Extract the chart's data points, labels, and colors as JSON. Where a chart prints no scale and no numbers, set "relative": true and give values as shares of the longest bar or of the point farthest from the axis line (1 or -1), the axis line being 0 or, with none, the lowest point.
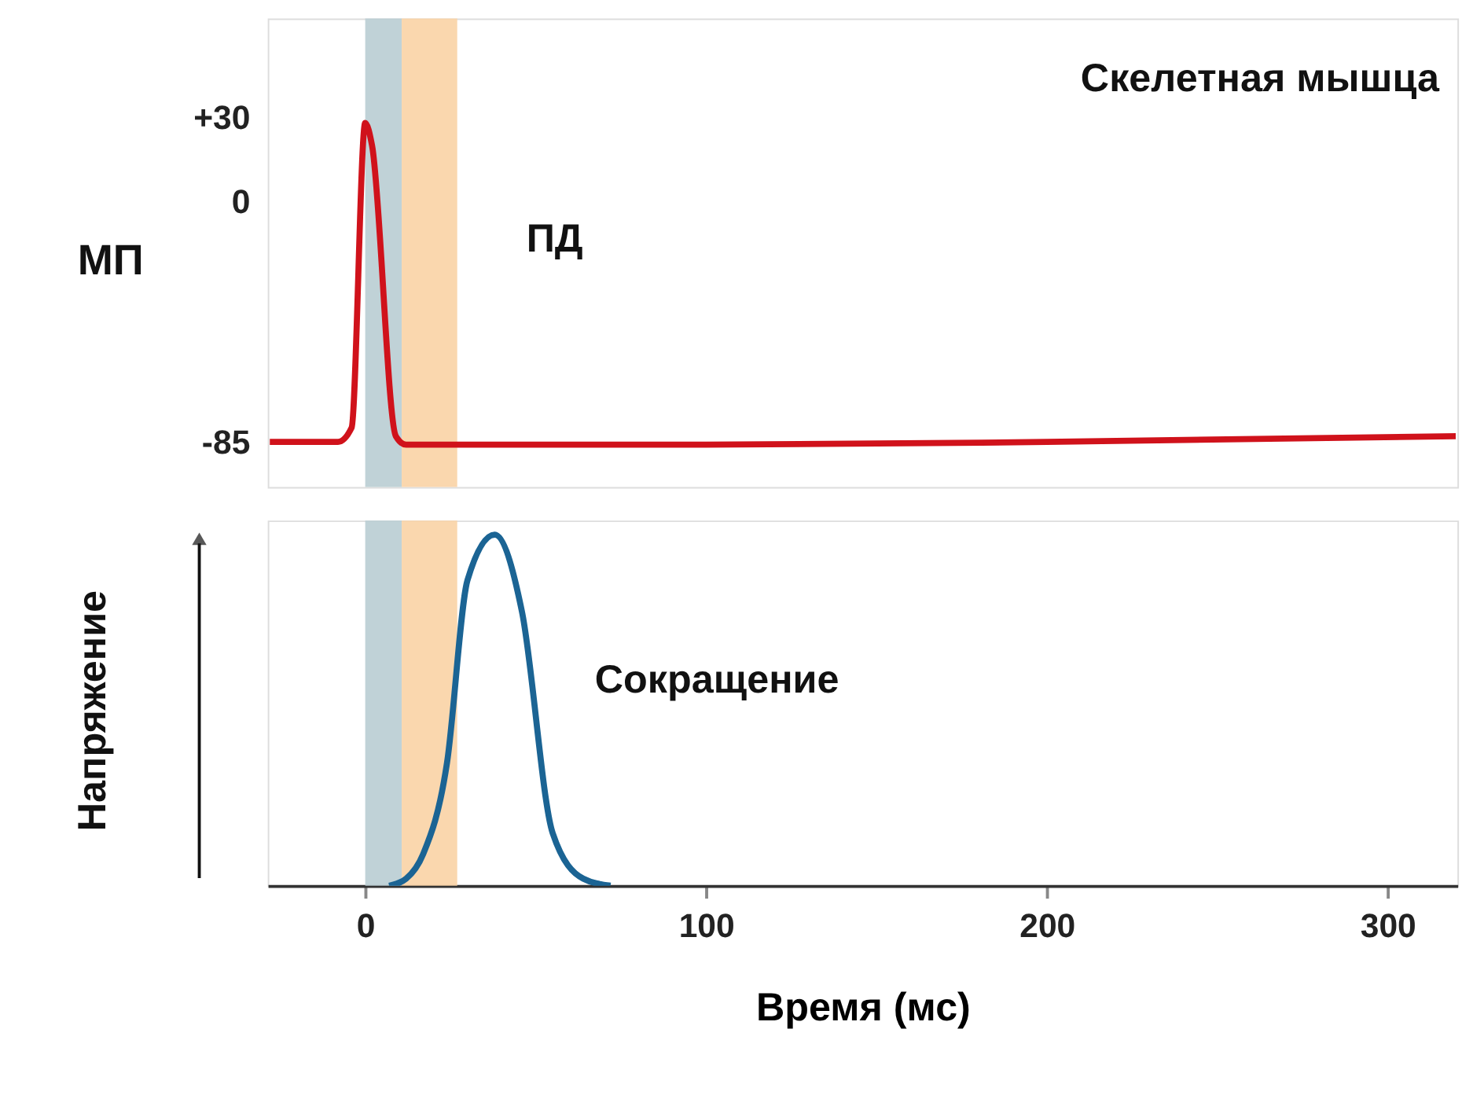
{
  "chart_data": [
    {
      "type": "line",
      "ylabel": "МП",
      "annotations": [
        "Скелетная мышца",
        "ПД"
      ],
      "x": [
        -28,
        -8,
        -4,
        0,
        2,
        9,
        12,
        100,
        200,
        320
      ],
      "series": [
        {
          "color": "#d0121b",
          "values": [
            -85,
            -85,
            -80,
            28,
            20,
            -83,
            -86,
            -86,
            -85,
            -83
          ]
        }
      ],
      "xlim": [
        -28.6,
        320.5
      ],
      "ylim": [
        -101,
        65
      ],
      "yticks": [
        {
          "value": 30,
          "label": "+30"
        },
        0,
        -85
      ],
      "bands": [
        {
          "axis": "x",
          "from": 0,
          "to": 10.7,
          "color": "#b9cdd3"
        },
        {
          "axis": "x",
          "from": 10.7,
          "to": 27,
          "color": "#f9d3a5"
        }
      ],
      "tick_labels": "y",
      "grid": false,
      "legend": false
    },
    {
      "type": "line",
      "relative": true,
      "xlabel": "Время (мс)",
      "ylabel": "Напряжение",
      "annotations": [
        "Сокращение"
      ],
      "x": [
        7,
        12,
        17,
        24,
        30,
        38,
        46,
        55,
        64,
        72
      ],
      "series": [
        {
          "color": "#1b6494",
          "values": [
            0,
            0.02,
            0.09,
            0.35,
            0.87,
            1,
            0.78,
            0.15,
            0.02,
            0
          ]
        }
      ],
      "xlim": [
        -28.6,
        320.5
      ],
      "xticks": [
        0,
        100,
        200,
        300
      ],
      "bands": [
        {
          "axis": "x",
          "from": 0,
          "to": 10.7,
          "color": "#b9cdd3"
        },
        {
          "axis": "x",
          "from": 10.7,
          "to": 27,
          "color": "#f9d3a5"
        }
      ],
      "tick_labels": "x",
      "grid": false,
      "legend": false
    }
  ]
}
